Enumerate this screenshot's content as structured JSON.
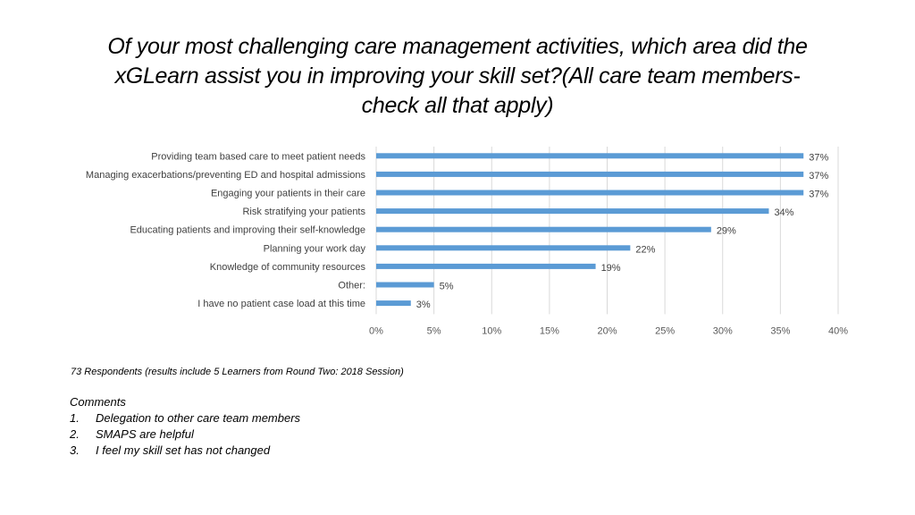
{
  "title_lines": [
    "Of your most challenging care management activities, which area did the",
    "xGLearn  assist you in improving your skill set?(All care team members-",
    "check all that apply)"
  ],
  "chart_data": {
    "type": "bar",
    "orientation": "horizontal",
    "categories": [
      "Providing team based care to meet patient needs",
      "Managing exacerbations/preventing ED and hospital admissions",
      "Engaging your patients in their care",
      "Risk stratifying your patients",
      "Educating patients and improving their self-knowledge",
      "Planning your work day",
      "Knowledge of community resources",
      "Other:",
      "I have no patient case load at this time"
    ],
    "values": [
      37,
      37,
      37,
      34,
      29,
      22,
      19,
      5,
      3
    ],
    "value_labels": [
      "37%",
      "37%",
      "37%",
      "34%",
      "29%",
      "22%",
      "19%",
      "5%",
      "3%"
    ],
    "xlim": [
      0,
      40
    ],
    "xticks": [
      "0%",
      "5%",
      "10%",
      "15%",
      "20%",
      "25%",
      "30%",
      "35%",
      "40%"
    ],
    "bar_color": "#5b9bd5",
    "grid": true
  },
  "respondents_note": "73 Respondents (results include 5 Learners from Round Two: 2018 Session)",
  "comments": {
    "heading": "Comments",
    "items": [
      {
        "num": "1.",
        "text": "Delegation to other care team members"
      },
      {
        "num": "2.",
        "text": "SMAPS are helpful"
      },
      {
        "num": "3.",
        "text": "I feel my skill set has not changed"
      }
    ]
  }
}
